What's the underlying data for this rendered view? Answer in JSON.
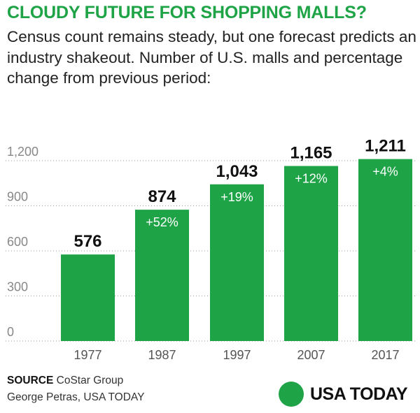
{
  "title": "CLOUDY FUTURE FOR SHOPPING MALLS?",
  "subtitle": "Census count remains steady, but one forecast predicts an industry shakeout. Number of U.S. malls and percentage change from previous period:",
  "source_label": "SOURCE",
  "source_text": "CoStar Group",
  "credit": "George Petras, USA TODAY",
  "brand": "USA TODAY",
  "colors": {
    "accent": "#1ea446",
    "text": "#111111",
    "axis": "#888888"
  },
  "chart_data": {
    "type": "bar",
    "categories": [
      "1977",
      "1987",
      "1997",
      "2007",
      "2017"
    ],
    "values": [
      576,
      874,
      1043,
      1165,
      1211
    ],
    "value_labels": [
      "576",
      "874",
      "1,043",
      "1,165",
      "1,211"
    ],
    "change_labels": [
      "",
      "+52%",
      "+19%",
      "+12%",
      "+4%"
    ],
    "ylim": [
      0,
      1200
    ],
    "yticks": [
      0,
      300,
      600,
      900,
      1200
    ],
    "ytick_labels": [
      "0",
      "300",
      "600",
      "900",
      "1,200"
    ],
    "grid": true
  }
}
